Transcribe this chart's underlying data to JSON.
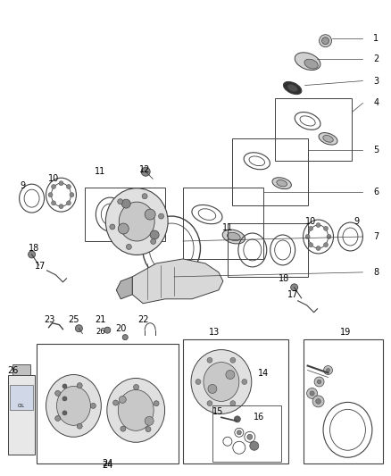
{
  "bg_color": "#ffffff",
  "line_color": "#404040",
  "label_color": "#000000",
  "fig_width": 4.38,
  "fig_height": 5.33,
  "dpi": 100
}
